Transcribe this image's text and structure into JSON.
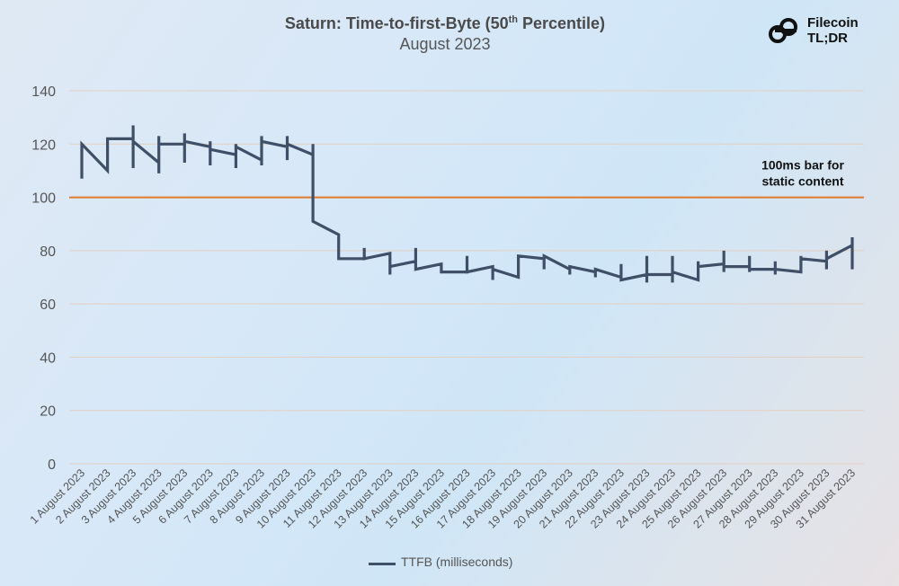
{
  "header": {
    "title_prefix": "Saturn: Time-to-first-Byte (50",
    "title_sup": "th",
    "title_suffix": " Percentile)",
    "subtitle": "August 2023"
  },
  "logo": {
    "line1": "Filecoin",
    "line2": "TL;DR",
    "icon": "filecoin-f-icon"
  },
  "colors": {
    "series": "#3f4f68",
    "reference": "#e07a2c",
    "grid": "#e3cfc1",
    "tick_text": "#555555"
  },
  "chart_data": {
    "type": "line",
    "title": "Saturn: Time-to-first-Byte (50th Percentile)",
    "subtitle": "August 2023",
    "categories": [
      "1 August 2023",
      "2 August 2023",
      "3 August 2023",
      "4 August 2023",
      "5 August 2023",
      "6 August 2023",
      "7 August 2023",
      "8 August 2023",
      "9 August 2023",
      "10 August 2023",
      "11 August 2023",
      "12 August 2023",
      "13 August 2023",
      "14 August 2023",
      "15 August 2023",
      "16 August 2023",
      "17 August 2023",
      "18 August 2023",
      "19 August 2023",
      "20 August 2023",
      "21 August 2023",
      "22 August 2023",
      "23 August 2023",
      "24 August 2023",
      "25 August 2023",
      "26 August 2023",
      "27 August 2023",
      "28 August 2023",
      "29 August 2023",
      "30 August 2023",
      "31 August 2023"
    ],
    "series": [
      {
        "name": "TTFB (milliseconds)",
        "points": [
          [
            0,
            107
          ],
          [
            0,
            120
          ],
          [
            1,
            110
          ],
          [
            1,
            122
          ],
          [
            2,
            122
          ],
          [
            2,
            127
          ],
          [
            2,
            111
          ],
          [
            2,
            121
          ],
          [
            3,
            113
          ],
          [
            3,
            109
          ],
          [
            3,
            123
          ],
          [
            3,
            120
          ],
          [
            4,
            120
          ],
          [
            4,
            124
          ],
          [
            4,
            113
          ],
          [
            4,
            121
          ],
          [
            5,
            119
          ],
          [
            5,
            121
          ],
          [
            5,
            112
          ],
          [
            5,
            118
          ],
          [
            6,
            116
          ],
          [
            6,
            111
          ],
          [
            6,
            120
          ],
          [
            6,
            119
          ],
          [
            7,
            114
          ],
          [
            7,
            112
          ],
          [
            7,
            123
          ],
          [
            7,
            121
          ],
          [
            8,
            119
          ],
          [
            8,
            123
          ],
          [
            8,
            114
          ],
          [
            8,
            120
          ],
          [
            9,
            116
          ],
          [
            9,
            120
          ],
          [
            9,
            91
          ],
          [
            10,
            86
          ],
          [
            10,
            77
          ],
          [
            11,
            77
          ],
          [
            11,
            81
          ],
          [
            11,
            77
          ],
          [
            12,
            79
          ],
          [
            12,
            71
          ],
          [
            12,
            74
          ],
          [
            13,
            76
          ],
          [
            13,
            81
          ],
          [
            13,
            73
          ],
          [
            14,
            75
          ],
          [
            14,
            72
          ],
          [
            15,
            72
          ],
          [
            15,
            78
          ],
          [
            15,
            72
          ],
          [
            16,
            74
          ],
          [
            16,
            69
          ],
          [
            16,
            73
          ],
          [
            17,
            70
          ],
          [
            17,
            78
          ],
          [
            18,
            77
          ],
          [
            18,
            73
          ],
          [
            18,
            78
          ],
          [
            19,
            73
          ],
          [
            19,
            71
          ],
          [
            19,
            74
          ],
          [
            20,
            72
          ],
          [
            20,
            70
          ],
          [
            20,
            73
          ],
          [
            21,
            70
          ],
          [
            21,
            75
          ],
          [
            21,
            69
          ],
          [
            22,
            71
          ],
          [
            22,
            68
          ],
          [
            22,
            78
          ],
          [
            22,
            71
          ],
          [
            23,
            71
          ],
          [
            23,
            68
          ],
          [
            23,
            78
          ],
          [
            23,
            72
          ],
          [
            24,
            69
          ],
          [
            24,
            76
          ],
          [
            24,
            74
          ],
          [
            25,
            75
          ],
          [
            25,
            72
          ],
          [
            25,
            80
          ],
          [
            25,
            74
          ],
          [
            26,
            74
          ],
          [
            26,
            72
          ],
          [
            26,
            78
          ],
          [
            26,
            73
          ],
          [
            27,
            73
          ],
          [
            27,
            71
          ],
          [
            27,
            76
          ],
          [
            27,
            73
          ],
          [
            28,
            72
          ],
          [
            28,
            78
          ],
          [
            28,
            77
          ],
          [
            29,
            76
          ],
          [
            29,
            73
          ],
          [
            29,
            80
          ],
          [
            29,
            77
          ],
          [
            30,
            82
          ],
          [
            30,
            85
          ],
          [
            30,
            73
          ]
        ]
      }
    ],
    "reference_line": {
      "value": 100,
      "label_line1": "100ms bar for",
      "label_line2": "static content"
    },
    "ylim": [
      0,
      140
    ],
    "yticks": [
      0,
      20,
      40,
      60,
      80,
      100,
      120,
      140
    ],
    "xlabel": "",
    "ylabel": "",
    "grid": true,
    "legend_position": "bottom"
  }
}
